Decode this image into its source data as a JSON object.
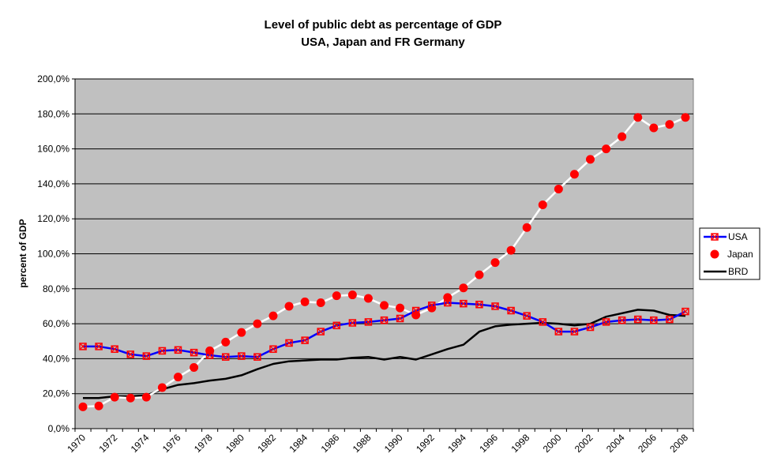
{
  "chart_data": {
    "type": "line",
    "title": "Level of public debt as percentage of GDP",
    "subtitle": "USA, Japan and FR Germany",
    "xlabel": "",
    "ylabel": "percent of GDP",
    "ylim": [
      0,
      200
    ],
    "y_ticks": [
      "0,0%",
      "20,0%",
      "40,0%",
      "60,0%",
      "80,0%",
      "100,0%",
      "120,0%",
      "140,0%",
      "160,0%",
      "180,0%",
      "200,0%"
    ],
    "x_ticks": [
      "1970",
      "1972",
      "1974",
      "1976",
      "1978",
      "1980",
      "1982",
      "1984",
      "1986",
      "1988",
      "1990",
      "1992",
      "1994",
      "1996",
      "1998",
      "2000",
      "2002",
      "2004",
      "2006",
      "2008"
    ],
    "x": [
      1970,
      1971,
      1972,
      1973,
      1974,
      1975,
      1976,
      1977,
      1978,
      1979,
      1980,
      1981,
      1982,
      1983,
      1984,
      1985,
      1986,
      1987,
      1988,
      1989,
      1990,
      1991,
      1992,
      1993,
      1994,
      1995,
      1996,
      1997,
      1998,
      1999,
      2000,
      2001,
      2002,
      2003,
      2004,
      2005,
      2006,
      2007,
      2008
    ],
    "grid": "horizontal",
    "legend_position": "right",
    "plot_background": "#c0c0c0",
    "series": [
      {
        "name": "USA",
        "line_color": "#0000ff",
        "marker": "square-x",
        "marker_color": "#ff0000",
        "values": [
          47,
          47,
          45.5,
          42.5,
          41.5,
          44.5,
          45,
          43.5,
          42,
          41,
          41.5,
          41,
          45.5,
          49,
          50.5,
          55.5,
          59,
          60.5,
          61,
          62,
          63,
          67.5,
          70.5,
          72,
          71.5,
          71,
          70,
          67.5,
          64.5,
          61,
          55.5,
          55.5,
          58,
          61,
          62,
          62.5,
          62,
          62.5,
          67
        ]
      },
      {
        "name": "Japan",
        "line_color": "#ffffff",
        "marker": "circle",
        "marker_color": "#ff0000",
        "values": [
          12.5,
          13,
          18,
          17.5,
          18,
          23.5,
          29.5,
          35,
          44.5,
          49.5,
          55,
          60,
          64.5,
          70,
          72.5,
          72,
          76,
          76.5,
          74.5,
          70.5,
          69,
          65,
          69,
          75,
          80.5,
          88,
          95,
          102,
          115,
          128,
          137,
          145.5,
          154,
          160,
          167,
          178,
          172,
          174,
          178
        ]
      },
      {
        "name": "BRD",
        "line_color": "#000000",
        "marker": "none",
        "values": [
          17.5,
          17.5,
          18.5,
          18.5,
          19,
          22.5,
          25,
          26,
          27.5,
          28.5,
          30.5,
          34,
          37,
          38.5,
          39,
          39.5,
          39.5,
          40.5,
          41,
          39.5,
          41,
          39.5,
          42.5,
          45.5,
          48,
          55.5,
          58.5,
          59.5,
          60,
          60.5,
          60,
          59,
          60,
          64,
          66,
          68,
          67.5,
          65,
          64.5
        ]
      }
    ]
  }
}
